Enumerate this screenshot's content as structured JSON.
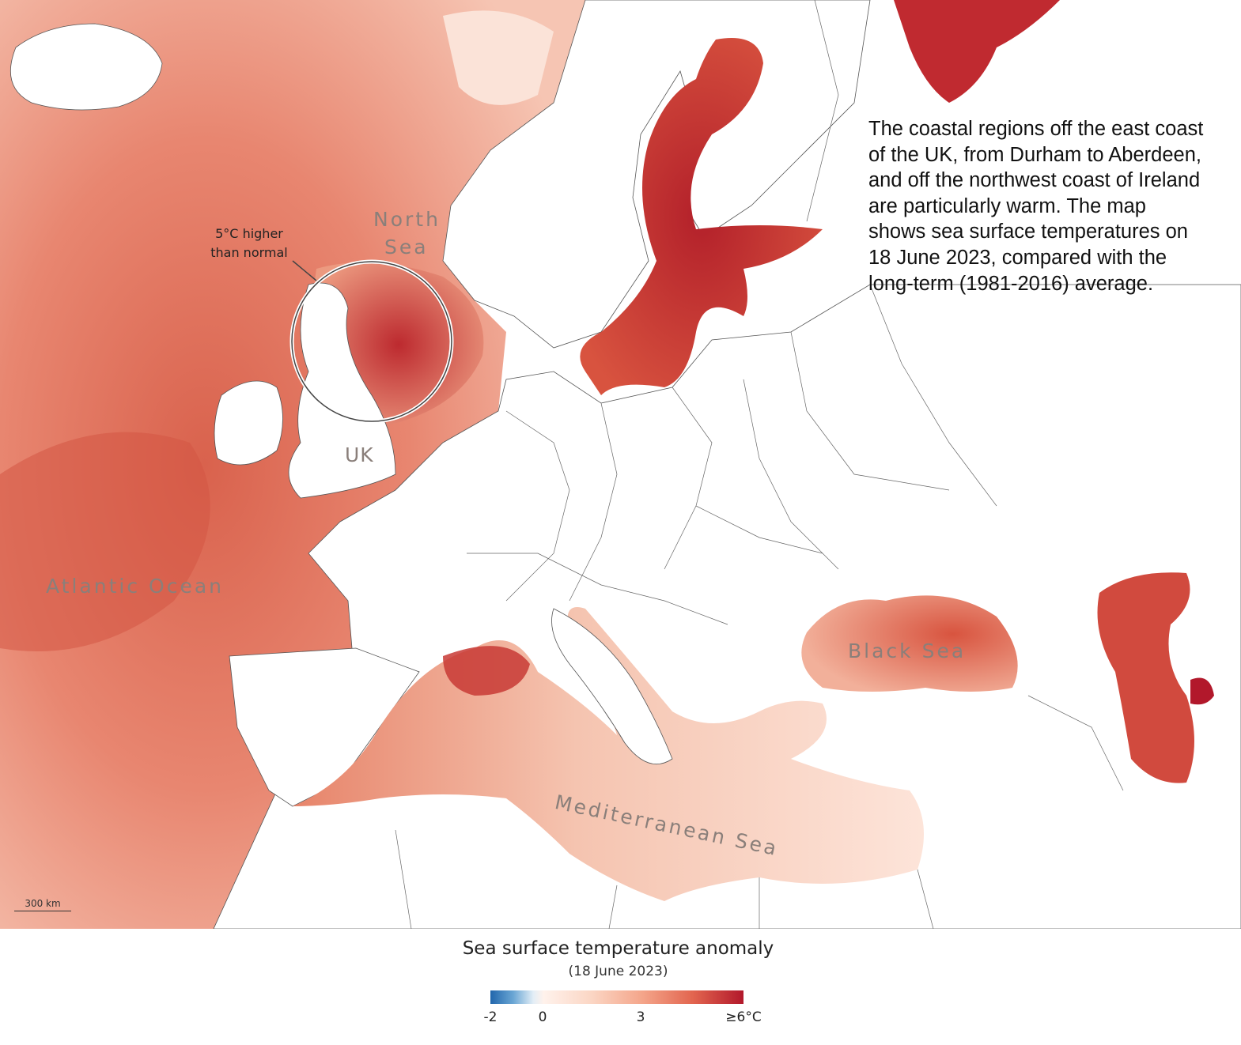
{
  "annotation": {
    "lines": [
      "The coastal regions off the east coast",
      "of the UK, from Durham to Aberdeen,",
      "and off the northwest coast of Ireland",
      "are particularly warm. The map",
      "shows sea surface temperatures on",
      "18 June 2023, compared with the",
      "long-term (1981-2016) average."
    ]
  },
  "labels": {
    "north_sea_1": "North",
    "north_sea_2": "Sea",
    "uk": "UK",
    "atlantic": "Atlantic Ocean",
    "black_sea": "Black Sea",
    "mediterranean": "Mediterranean Sea"
  },
  "callout": {
    "line1": "5°C higher",
    "line2": "than normal"
  },
  "scale": {
    "label": "300 km"
  },
  "legend": {
    "title": "Sea surface temperature anomaly",
    "subtitle": "(18 June 2023)",
    "ticks": [
      "-2",
      "0",
      "3",
      "≥6°C"
    ],
    "colors": {
      "min": "#2166ac",
      "zero": "#fff2ec",
      "max": "#b2182b"
    }
  }
}
